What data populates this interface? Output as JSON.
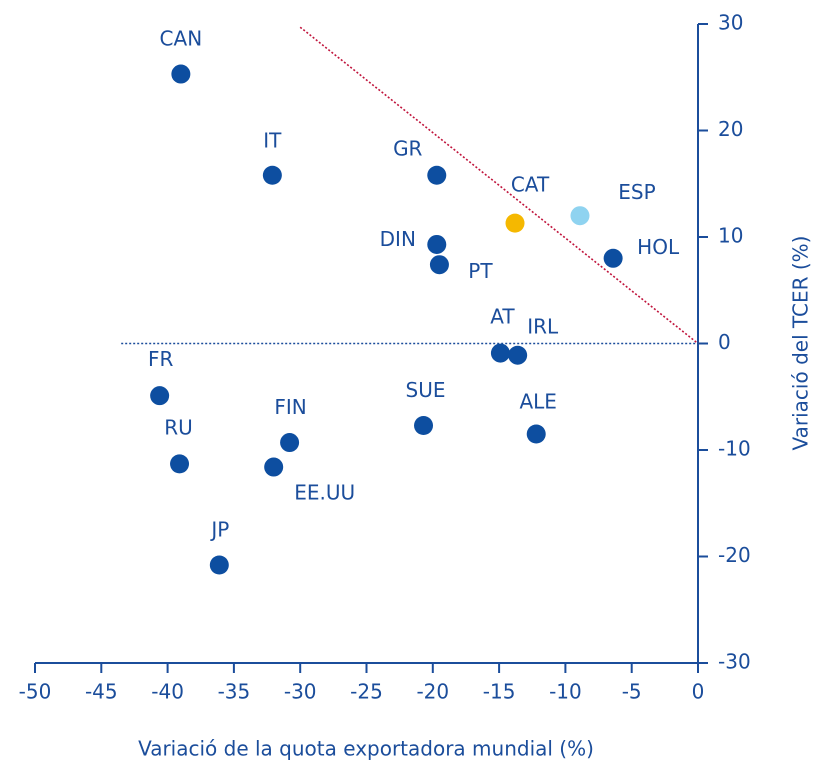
{
  "chart_data": {
    "type": "scatter",
    "xlabel": "Variació de la quota exportadora mundial (%)",
    "ylabel": "Variació del TCER (%)",
    "labels": [
      "CAN",
      "IT",
      "GR",
      "CAT",
      "ESP",
      "DIN",
      "PT",
      "HOL",
      "AT",
      "IRL",
      "FR",
      "SUE",
      "ALE",
      "FIN",
      "RU",
      "EE.UU",
      "JP"
    ],
    "x": [
      -39.0,
      -32.1,
      -19.7,
      -13.8,
      -8.9,
      -19.7,
      -19.5,
      -6.4,
      -14.9,
      -13.6,
      -40.6,
      -20.7,
      -12.2,
      -30.8,
      -39.1,
      -32.0,
      -36.1
    ],
    "y": [
      25.3,
      15.8,
      15.8,
      11.3,
      12.0,
      9.3,
      7.4,
      8.0,
      -0.9,
      -1.1,
      -4.9,
      -7.7,
      -8.5,
      -9.3,
      -11.3,
      -11.6,
      -20.8
    ],
    "colors": [
      "#0d4ea0",
      "#0d4ea0",
      "#0d4ea0",
      "#f5b800",
      "#8fd3f0",
      "#0d4ea0",
      "#0d4ea0",
      "#0d4ea0",
      "#0d4ea0",
      "#0d4ea0",
      "#0d4ea0",
      "#0d4ea0",
      "#0d4ea0",
      "#0d4ea0",
      "#0d4ea0",
      "#0d4ea0",
      "#0d4ea0"
    ],
    "lines": [
      {
        "x": [
          -30,
          0
        ],
        "y": [
          29.7,
          0
        ],
        "color": "#c0143c"
      },
      {
        "x": [
          -43.5,
          0
        ],
        "y": [
          0,
          0
        ],
        "color": "#1b4d9b"
      }
    ],
    "xlim": [
      -50,
      0
    ],
    "xticks": [
      -50,
      -45,
      -40,
      -35,
      -30,
      -25,
      -20,
      -15,
      -10,
      -5,
      0
    ],
    "ylim": [
      -30,
      30
    ],
    "yticks": [
      -30,
      -20,
      -10,
      0,
      10,
      20,
      30
    ]
  }
}
